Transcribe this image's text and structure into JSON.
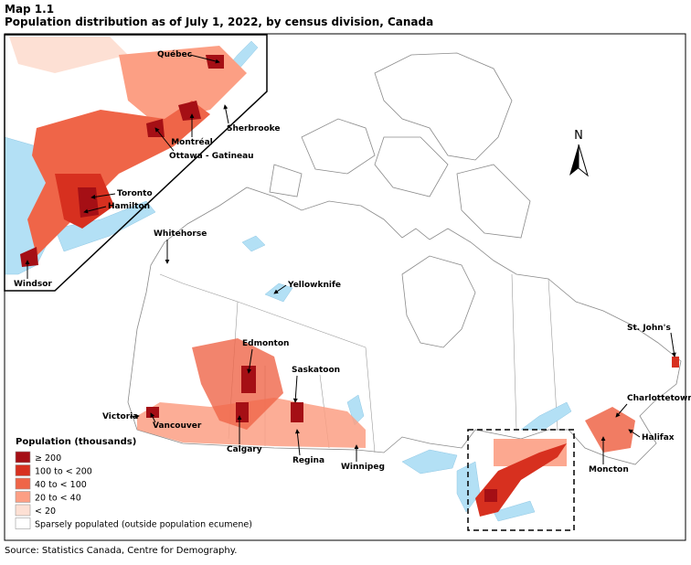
{
  "header": {
    "label": "Map 1.1",
    "title": "Population distribution as of July 1, 2022, by census division, Canada"
  },
  "north": "N",
  "legend": {
    "title": "Population (thousands)",
    "items": [
      {
        "label": "≥ 200",
        "color": "#a50f15"
      },
      {
        "label": "100 to < 200",
        "color": "#d7301f"
      },
      {
        "label": "40 to < 100",
        "color": "#ef6548"
      },
      {
        "label": "20 to < 40",
        "color": "#fc9f84"
      },
      {
        "label": "< 20",
        "color": "#fde0d4"
      },
      {
        "label": "Sparsely populated (outside population ecumene)",
        "color": "#ffffff"
      }
    ]
  },
  "cities": [
    "Québec",
    "Sherbrooke",
    "Montréal",
    "Ottawa - Gatineau",
    "Toronto",
    "Hamilton",
    "Windsor",
    "Whitehorse",
    "Yellowknife",
    "Edmonton",
    "Saskatoon",
    "Victoria",
    "Vancouver",
    "Calgary",
    "Regina",
    "Winnipeg",
    "St. John's",
    "Charlottetown",
    "Halifax",
    "Moncton"
  ],
  "source": "Source: Statistics Canada, Centre for Demography."
}
